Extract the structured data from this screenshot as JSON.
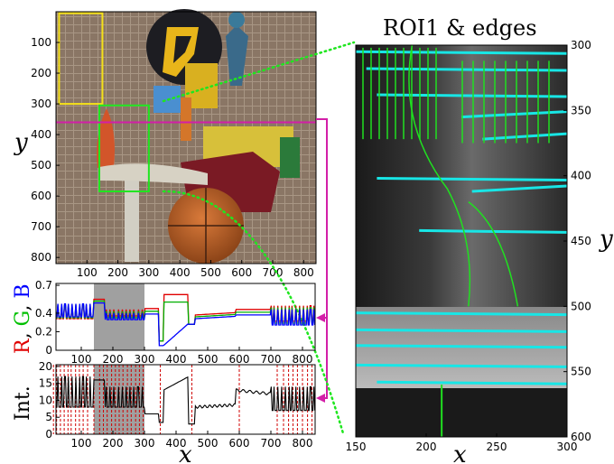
{
  "photo": {
    "title": "",
    "y_ticks": [
      "100",
      "200",
      "300",
      "400",
      "500",
      "600",
      "700",
      "800"
    ],
    "x_ticks": [
      "100",
      "200",
      "300",
      "400",
      "500",
      "600",
      "700",
      "800"
    ],
    "y_label": "y",
    "x_range": [
      0,
      840
    ],
    "y_range": [
      0,
      820
    ],
    "roi_yellow": {
      "x0": 10,
      "x1": 150,
      "y0": 5,
      "y1": 300
    },
    "roi_green": {
      "x0": 140,
      "x1": 300,
      "y0": 305,
      "y1": 585
    },
    "scan_line_y": 360,
    "colors": {
      "yellow": "#f5e11a",
      "green": "#1fe61f",
      "magenta": "#d31fa8"
    }
  },
  "rgb_plot": {
    "y_label_parts": [
      "R",
      ", ",
      "G",
      ", ",
      "B"
    ],
    "y_label_colors": [
      "#e00000",
      "#000000",
      "#00c000",
      "#000000",
      "#0000ff"
    ],
    "y_ticks": [
      "0",
      "0.2",
      "0.4",
      "0.7"
    ],
    "x_ticks": [
      "100",
      "200",
      "300",
      "400",
      "500",
      "600",
      "700",
      "800"
    ],
    "shaded": [
      140,
      300
    ]
  },
  "int_plot": {
    "y_label": "Int.",
    "y_ticks": [
      "0",
      "5",
      "10",
      "15",
      "20"
    ],
    "x_ticks": [
      "100",
      "200",
      "300",
      "400",
      "500",
      "600",
      "700",
      "800"
    ],
    "x_label": "x",
    "shaded": [
      140,
      300
    ],
    "edge_lines": [
      12,
      22,
      34,
      46,
      58,
      68,
      82,
      94,
      106,
      120,
      140,
      158,
      170,
      182,
      196,
      208,
      220,
      232,
      246,
      258,
      272,
      284,
      296,
      350,
      450,
      600,
      720,
      740,
      756,
      770,
      784,
      800,
      816,
      830
    ]
  },
  "roi_panel": {
    "title": "ROI1 & edges",
    "x_ticks": [
      "150",
      "200",
      "250",
      "300"
    ],
    "y_ticks": [
      "300",
      "350",
      "400",
      "450",
      "500",
      "550",
      "600"
    ],
    "x_label": "x",
    "y_label": "y"
  }
}
